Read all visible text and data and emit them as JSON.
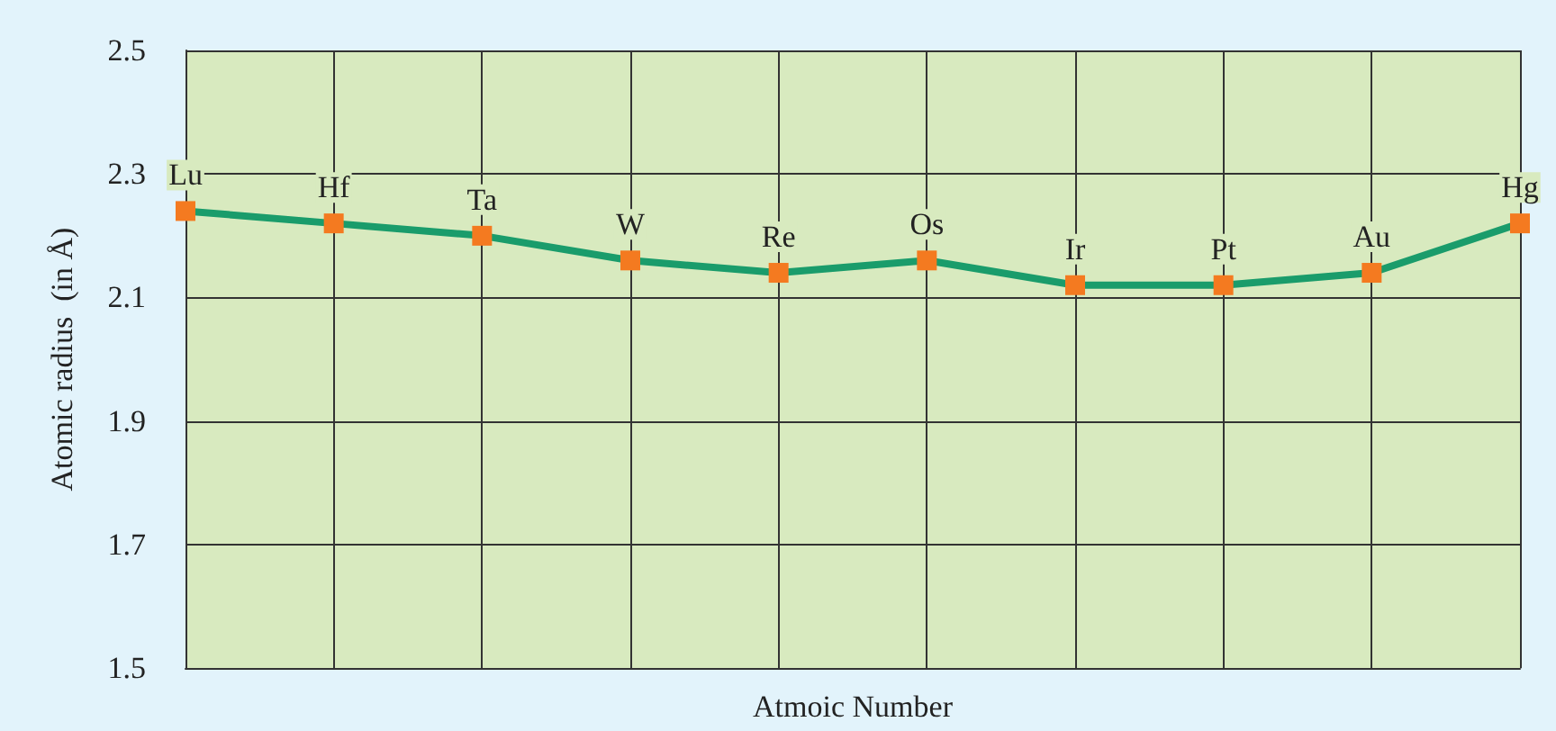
{
  "chart_data": {
    "type": "line",
    "xlabel": "Atmoic Number",
    "ylabel": "Atomic radius  (in Å)",
    "categories": [
      null,
      null,
      null,
      null,
      null,
      null,
      null,
      null,
      null,
      null
    ],
    "series": [
      {
        "color": "#1a9c6b",
        "values": [
          2.24,
          2.22,
          2.2,
          2.16,
          2.14,
          2.16,
          2.12,
          2.12,
          2.14,
          2.22
        ],
        "value_labels": [
          "Lu",
          "Hf",
          "Ta",
          "W",
          "Re",
          "Os",
          "Ir",
          "Pt",
          "Au",
          "Hg"
        ]
      }
    ],
    "ylim": [
      1.5,
      2.5
    ],
    "yticks": [
      1.5,
      1.7,
      1.9,
      2.1,
      2.3,
      2.5
    ],
    "grid": true,
    "marker": "square",
    "line_style": "solid"
  }
}
